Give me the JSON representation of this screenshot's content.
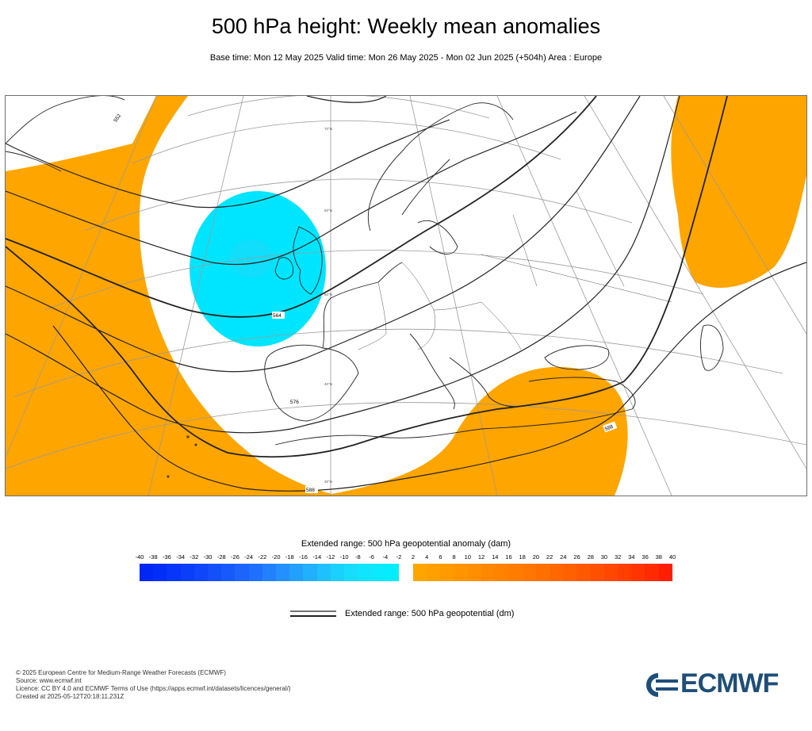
{
  "header": {
    "title": "500 hPa height: Weekly mean anomalies",
    "subtitle": "Base time: Mon 12 May 2025 Valid time: Mon 26 May 2025 - Mon 02 Jun 2025 (+504h) Area : Europe"
  },
  "map": {
    "area": "Europe",
    "colors": {
      "positive_anomaly": "#FFA500",
      "negative_anomaly": "#00E5FF",
      "land_border": "#222222",
      "graticule": "#9a9a9a",
      "contour": "#222222"
    },
    "contour_labels": [
      "552",
      "564",
      "576",
      "588",
      "588"
    ],
    "lat_labels": [
      "70°N",
      "60°N",
      "50°N",
      "40°N",
      "30°N"
    ]
  },
  "colorbar": {
    "title": "Extended range: 500 hPa geopotential anomaly (dam)",
    "ticks": [
      "-40",
      "-38",
      "-36",
      "-34",
      "-32",
      "-30",
      "-28",
      "-26",
      "-24",
      "-22",
      "-20",
      "-18",
      "-16",
      "-14",
      "-12",
      "-10",
      "-8",
      "-6",
      "-4",
      "-2",
      "2",
      "4",
      "6",
      "8",
      "10",
      "12",
      "14",
      "16",
      "18",
      "20",
      "22",
      "24",
      "26",
      "28",
      "30",
      "32",
      "34",
      "36",
      "38",
      "40"
    ],
    "negative_colors": [
      "#0027f5",
      "#002ef6",
      "#0636f7",
      "#0a3ef8",
      "#0f46f9",
      "#1350fa",
      "#175afb",
      "#1b65fc",
      "#1f70fd",
      "#2380fd",
      "#2490fd",
      "#22a0fd",
      "#20b0fd",
      "#1ec0fe",
      "#1ad0fe",
      "#16dcfe",
      "#10e4fe",
      "#0ae9fe",
      "#04edfe"
    ],
    "positive_colors": [
      "#ffa500",
      "#ffa000",
      "#ff9a00",
      "#ff9400",
      "#ff8e00",
      "#ff8800",
      "#ff8200",
      "#ff7c00",
      "#ff7600",
      "#ff6f00",
      "#ff6800",
      "#ff6000",
      "#ff5800",
      "#ff5000",
      "#ff4700",
      "#ff3e00",
      "#ff3400",
      "#ff2a00",
      "#ff1f00"
    ]
  },
  "legend": {
    "label": "Extended range: 500 hPa geopotential (dm)"
  },
  "footer": {
    "lines": [
      "© 2025 European Centre for Medium-Range Weather Forecasts (ECMWF)",
      "Source: www.ecmwf.int",
      "Licence: CC BY 4.0 and ECMWF Terms of Use (https://apps.ecmwf.int/datasets/licences/general/)",
      "Created at 2025-05-12T20:18:11.231Z"
    ]
  },
  "logo": {
    "text": "ECMWF",
    "color": "#1f4e79"
  }
}
